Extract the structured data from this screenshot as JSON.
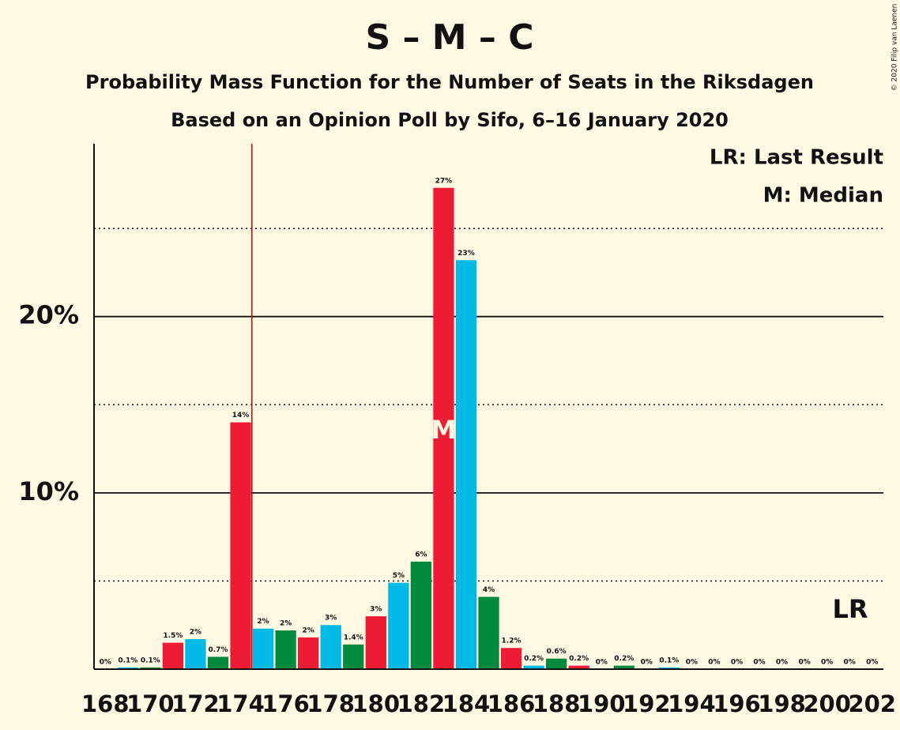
{
  "chart_data": {
    "type": "bar",
    "title": "S – M – C",
    "subtitle": "Probability Mass Function for the Number of Seats in the Riksdagen",
    "subtitle2": "Based on an Opinion Poll by Sifo, 6–16 January 2020",
    "copyright": "© 2020 Filip van Laenen",
    "legend_last_result": "LR: Last Result",
    "legend_median": "M: Median",
    "categories": [
      "168",
      null,
      "170",
      null,
      "172",
      null,
      "174",
      null,
      "176",
      null,
      "178",
      null,
      "180",
      null,
      "182",
      null,
      "184",
      null,
      "186",
      null,
      "188",
      null,
      "190",
      null,
      "192",
      null,
      "194",
      null,
      "196",
      null,
      "198",
      null,
      "200",
      null,
      "202"
    ],
    "values": [
      0,
      0.1,
      0.1,
      1.5,
      1.7,
      0.7,
      14.0,
      2.3,
      2.2,
      1.8,
      2.5,
      1.4,
      3.0,
      4.9,
      6.1,
      27.3,
      23.2,
      4.1,
      1.2,
      0.2,
      0.6,
      0.2,
      0,
      0.2,
      0,
      0.1,
      0,
      0,
      0,
      0,
      0,
      0,
      0,
      0,
      0
    ],
    "value_labels": [
      "0%",
      "0.1%",
      "0.1%",
      "1.5%",
      "2%",
      "0.7%",
      "14%",
      "2%",
      "2%",
      "2%",
      "3%",
      "1.4%",
      "3%",
      "5%",
      "6%",
      "27%",
      "23%",
      "4%",
      "1.2%",
      "0.2%",
      "0.6%",
      "0.2%",
      "0%",
      "0.2%",
      "0%",
      "0.1%",
      "0%",
      "0%",
      "0%",
      "0%",
      "0%",
      "0%",
      "0%",
      "0%",
      "0%"
    ],
    "color_cycle": [
      "#ed1b34",
      "#00b9e4",
      "#008a3e"
    ],
    "median_index": 15,
    "median_label": "M",
    "last_result_index": 6,
    "last_result_label": "LR",
    "last_result_color": "#cc0000",
    "ylim": [
      0,
      29.8
    ],
    "yticks": [
      {
        "value": 10,
        "label": "10%"
      },
      {
        "value": 20,
        "label": "20%"
      }
    ],
    "minor_yticks": [
      5,
      15,
      25
    ],
    "grid": true
  }
}
